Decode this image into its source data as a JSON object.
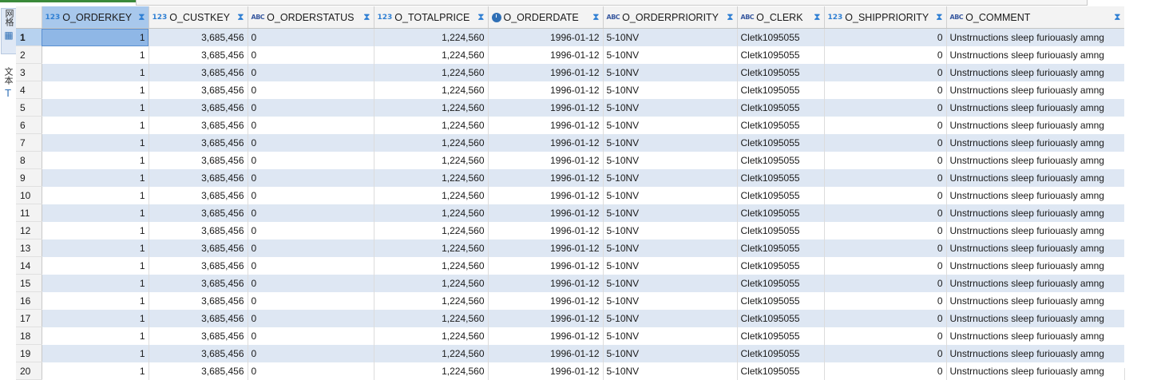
{
  "side_tabs": {
    "grid_label": "网格",
    "text_label": "文本",
    "grid_icon": "grid-icon",
    "text_icon": "text-icon"
  },
  "columns": [
    {
      "name": "O_ORDERKEY",
      "type": "123",
      "align": "right"
    },
    {
      "name": "O_CUSTKEY",
      "type": "123",
      "align": "right"
    },
    {
      "name": "O_ORDERSTATUS",
      "type": "ABC",
      "align": "left"
    },
    {
      "name": "O_TOTALPRICE",
      "type": "123",
      "align": "right"
    },
    {
      "name": "O_ORDERDATE",
      "type": "date",
      "align": "right"
    },
    {
      "name": "O_ORDERPRIORITY",
      "type": "ABC",
      "align": "left"
    },
    {
      "name": "O_CLERK",
      "type": "ABC",
      "align": "left"
    },
    {
      "name": "O_SHIPPRIORITY",
      "type": "123",
      "align": "right"
    },
    {
      "name": "O_COMMENT",
      "type": "ABC",
      "align": "left"
    }
  ],
  "rows": [
    {
      "num": "1",
      "cells": [
        "1",
        "3,685,456",
        "0",
        "1,224,560",
        "1996-01-12",
        "5-10NV",
        "Cletk1095055",
        "0",
        "Unstrnuctions sleep furiouasly amng"
      ]
    },
    {
      "num": "2",
      "cells": [
        "1",
        "3,685,456",
        "0",
        "1,224,560",
        "1996-01-12",
        "5-10NV",
        "Cletk1095055",
        "0",
        "Unstrnuctions sleep furiouasly amng"
      ]
    },
    {
      "num": "3",
      "cells": [
        "1",
        "3,685,456",
        "0",
        "1,224,560",
        "1996-01-12",
        "5-10NV",
        "Cletk1095055",
        "0",
        "Unstrnuctions sleep furiouasly amng"
      ]
    },
    {
      "num": "4",
      "cells": [
        "1",
        "3,685,456",
        "0",
        "1,224,560",
        "1996-01-12",
        "5-10NV",
        "Cletk1095055",
        "0",
        "Unstrnuctions sleep furiouasly amng"
      ]
    },
    {
      "num": "5",
      "cells": [
        "1",
        "3,685,456",
        "0",
        "1,224,560",
        "1996-01-12",
        "5-10NV",
        "Cletk1095055",
        "0",
        "Unstrnuctions sleep furiouasly amng"
      ]
    },
    {
      "num": "6",
      "cells": [
        "1",
        "3,685,456",
        "0",
        "1,224,560",
        "1996-01-12",
        "5-10NV",
        "Cletk1095055",
        "0",
        "Unstrnuctions sleep furiouasly amng"
      ]
    },
    {
      "num": "7",
      "cells": [
        "1",
        "3,685,456",
        "0",
        "1,224,560",
        "1996-01-12",
        "5-10NV",
        "Cletk1095055",
        "0",
        "Unstrnuctions sleep furiouasly amng"
      ]
    },
    {
      "num": "8",
      "cells": [
        "1",
        "3,685,456",
        "0",
        "1,224,560",
        "1996-01-12",
        "5-10NV",
        "Cletk1095055",
        "0",
        "Unstrnuctions sleep furiouasly amng"
      ]
    },
    {
      "num": "9",
      "cells": [
        "1",
        "3,685,456",
        "0",
        "1,224,560",
        "1996-01-12",
        "5-10NV",
        "Cletk1095055",
        "0",
        "Unstrnuctions sleep furiouasly amng"
      ]
    },
    {
      "num": "10",
      "cells": [
        "1",
        "3,685,456",
        "0",
        "1,224,560",
        "1996-01-12",
        "5-10NV",
        "Cletk1095055",
        "0",
        "Unstrnuctions sleep furiouasly amng"
      ]
    },
    {
      "num": "11",
      "cells": [
        "1",
        "3,685,456",
        "0",
        "1,224,560",
        "1996-01-12",
        "5-10NV",
        "Cletk1095055",
        "0",
        "Unstrnuctions sleep furiouasly amng"
      ]
    },
    {
      "num": "12",
      "cells": [
        "1",
        "3,685,456",
        "0",
        "1,224,560",
        "1996-01-12",
        "5-10NV",
        "Cletk1095055",
        "0",
        "Unstrnuctions sleep furiouasly amng"
      ]
    },
    {
      "num": "13",
      "cells": [
        "1",
        "3,685,456",
        "0",
        "1,224,560",
        "1996-01-12",
        "5-10NV",
        "Cletk1095055",
        "0",
        "Unstrnuctions sleep furiouasly amng"
      ]
    },
    {
      "num": "14",
      "cells": [
        "1",
        "3,685,456",
        "0",
        "1,224,560",
        "1996-01-12",
        "5-10NV",
        "Cletk1095055",
        "0",
        "Unstrnuctions sleep furiouasly amng"
      ]
    },
    {
      "num": "15",
      "cells": [
        "1",
        "3,685,456",
        "0",
        "1,224,560",
        "1996-01-12",
        "5-10NV",
        "Cletk1095055",
        "0",
        "Unstrnuctions sleep furiouasly amng"
      ]
    },
    {
      "num": "16",
      "cells": [
        "1",
        "3,685,456",
        "0",
        "1,224,560",
        "1996-01-12",
        "5-10NV",
        "Cletk1095055",
        "0",
        "Unstrnuctions sleep furiouasly amng"
      ]
    },
    {
      "num": "17",
      "cells": [
        "1",
        "3,685,456",
        "0",
        "1,224,560",
        "1996-01-12",
        "5-10NV",
        "Cletk1095055",
        "0",
        "Unstrnuctions sleep furiouasly amng"
      ]
    },
    {
      "num": "18",
      "cells": [
        "1",
        "3,685,456",
        "0",
        "1,224,560",
        "1996-01-12",
        "5-10NV",
        "Cletk1095055",
        "0",
        "Unstrnuctions sleep furiouasly amng"
      ]
    },
    {
      "num": "19",
      "cells": [
        "1",
        "3,685,456",
        "0",
        "1,224,560",
        "1996-01-12",
        "5-10NV",
        "Cletk1095055",
        "0",
        "Unstrnuctions sleep furiouasly amng"
      ]
    },
    {
      "num": "20",
      "cells": [
        "1",
        "3,685,456",
        "0",
        "1,224,560",
        "1996-01-12",
        "5-10NV",
        "Cletk1095055",
        "0",
        "Unstrnuctions sleep furiouasly amng"
      ]
    }
  ],
  "icons": {
    "sort": "filter-sort-icon",
    "numeric_type": "123",
    "text_type": "ABC"
  },
  "colors": {
    "accent": "#2f7fd3",
    "row_band": "#dee7f3",
    "selection": "#8fb7e6"
  }
}
